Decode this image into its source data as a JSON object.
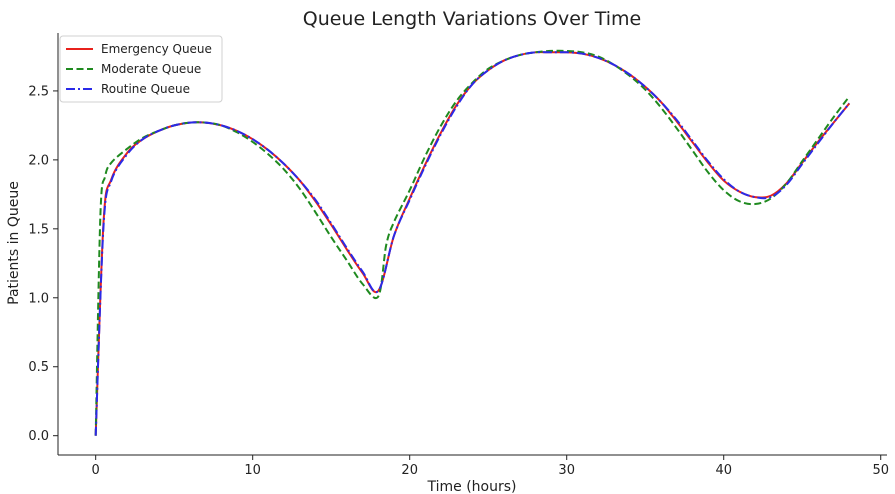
{
  "chart_data": {
    "type": "line",
    "title": "Queue Length Variations Over Time",
    "xlabel": "Time (hours)",
    "ylabel": "Patients in Queue",
    "xlim": [
      -2.4,
      50.4
    ],
    "ylim": [
      -0.14,
      2.92
    ],
    "xticks": [
      0,
      10,
      20,
      30,
      40,
      50
    ],
    "yticks": [
      0.0,
      0.5,
      1.0,
      1.5,
      2.0,
      2.5
    ],
    "xtick_labels": [
      "0",
      "10",
      "20",
      "30",
      "40",
      "50"
    ],
    "ytick_labels": [
      "0.0",
      "0.5",
      "1.0",
      "1.5",
      "2.0",
      "2.5"
    ],
    "grid": false,
    "legend_position": "top-left",
    "series": [
      {
        "name": "Emergency Queue",
        "color": "#e8211c",
        "dash": "solid",
        "x": [
          0,
          0.5,
          1,
          2,
          3,
          4,
          5,
          6,
          7,
          8,
          9,
          10,
          11,
          12,
          13,
          14,
          15,
          16,
          17,
          18,
          19,
          20,
          21,
          22,
          23,
          24,
          25,
          26,
          27,
          28,
          29,
          30,
          31,
          32,
          33,
          34,
          35,
          36,
          37,
          38,
          39,
          40,
          41,
          42,
          43,
          44,
          45,
          46,
          47,
          48
        ],
        "y": [
          0.0,
          1.55,
          1.86,
          2.05,
          2.15,
          2.21,
          2.25,
          2.27,
          2.27,
          2.25,
          2.21,
          2.15,
          2.07,
          1.97,
          1.85,
          1.7,
          1.53,
          1.35,
          1.18,
          1.05,
          1.45,
          1.72,
          1.97,
          2.2,
          2.4,
          2.55,
          2.65,
          2.72,
          2.76,
          2.78,
          2.78,
          2.78,
          2.77,
          2.74,
          2.69,
          2.62,
          2.53,
          2.42,
          2.28,
          2.13,
          1.98,
          1.85,
          1.77,
          1.73,
          1.74,
          1.83,
          1.98,
          2.13,
          2.27,
          2.41
        ]
      },
      {
        "name": "Moderate Queue",
        "color": "#1f8a1f",
        "dash": "dashed",
        "x": [
          0,
          0.3,
          0.6,
          1,
          2,
          3,
          4,
          5,
          6,
          7,
          8,
          9,
          10,
          11,
          12,
          13,
          14,
          15,
          16,
          17,
          18,
          18.5,
          19,
          20,
          21,
          22,
          23,
          24,
          25,
          26,
          27,
          28,
          29,
          30,
          31,
          32,
          33,
          34,
          35,
          36,
          37,
          38,
          39,
          40,
          41,
          42,
          43,
          44,
          45,
          46,
          47,
          48
        ],
        "y": [
          0.0,
          1.6,
          1.88,
          1.98,
          2.08,
          2.16,
          2.21,
          2.25,
          2.27,
          2.27,
          2.25,
          2.2,
          2.13,
          2.04,
          1.93,
          1.79,
          1.62,
          1.44,
          1.27,
          1.1,
          1.01,
          1.38,
          1.55,
          1.78,
          2.03,
          2.25,
          2.43,
          2.56,
          2.66,
          2.72,
          2.76,
          2.78,
          2.79,
          2.79,
          2.78,
          2.75,
          2.69,
          2.61,
          2.51,
          2.38,
          2.23,
          2.07,
          1.91,
          1.78,
          1.7,
          1.68,
          1.72,
          1.83,
          1.99,
          2.15,
          2.31,
          2.46
        ]
      },
      {
        "name": "Routine Queue",
        "color": "#2a2ae8",
        "dash": "dashdot",
        "x": [
          0,
          0.5,
          1,
          2,
          3,
          4,
          5,
          6,
          7,
          8,
          9,
          10,
          11,
          12,
          13,
          14,
          15,
          16,
          17,
          18,
          19,
          20,
          21,
          22,
          23,
          24,
          25,
          26,
          27,
          28,
          29,
          30,
          31,
          32,
          33,
          34,
          35,
          36,
          37,
          38,
          39,
          40,
          41,
          42,
          43,
          44,
          45,
          46,
          47,
          48
        ],
        "y": [
          0.0,
          1.52,
          1.85,
          2.04,
          2.15,
          2.21,
          2.25,
          2.27,
          2.27,
          2.25,
          2.21,
          2.15,
          2.07,
          1.97,
          1.85,
          1.71,
          1.54,
          1.36,
          1.19,
          1.05,
          1.45,
          1.71,
          1.96,
          2.19,
          2.39,
          2.55,
          2.65,
          2.72,
          2.76,
          2.78,
          2.78,
          2.78,
          2.77,
          2.74,
          2.69,
          2.62,
          2.53,
          2.42,
          2.29,
          2.14,
          1.99,
          1.86,
          1.77,
          1.73,
          1.73,
          1.82,
          1.97,
          2.12,
          2.27,
          2.41
        ]
      }
    ]
  }
}
